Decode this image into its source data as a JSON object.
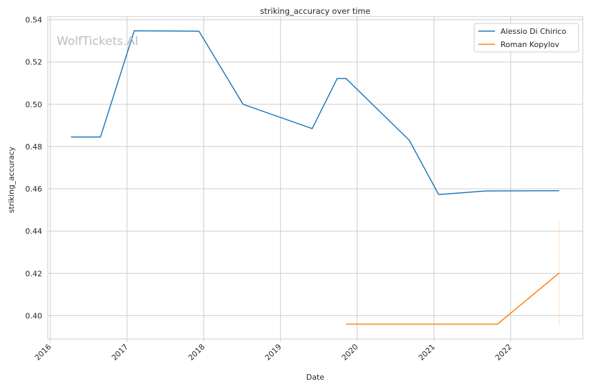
{
  "watermark": "WolfTickets.AI",
  "chart_data": {
    "type": "line",
    "title": "striking_accuracy over time",
    "xlabel": "Date",
    "ylabel": "striking_accuracy",
    "x_type": "date",
    "xlim": [
      "2015-12-20",
      "2022-12-10"
    ],
    "ylim": [
      0.389,
      0.5415
    ],
    "x_ticks": [
      "2016-01-01",
      "2017-01-01",
      "2018-01-01",
      "2019-01-01",
      "2020-01-01",
      "2021-01-01",
      "2022-01-01"
    ],
    "x_tick_labels": [
      "2016",
      "2017",
      "2018",
      "2019",
      "2020",
      "2021",
      "2022"
    ],
    "y_ticks": [
      0.4,
      0.42,
      0.44,
      0.46,
      0.48,
      0.5,
      0.52,
      0.54
    ],
    "y_tick_labels": [
      "0.40",
      "0.42",
      "0.44",
      "0.46",
      "0.48",
      "0.50",
      "0.52",
      "0.54"
    ],
    "grid": true,
    "legend_position": "top-right",
    "series": [
      {
        "name": "Alessio Di Chirico",
        "color": "#1f77b4",
        "points": [
          {
            "x": "2016-04-09",
            "y": 0.4845
          },
          {
            "x": "2016-08-27",
            "y": 0.4845
          },
          {
            "x": "2017-02-04",
            "y": 0.5348
          },
          {
            "x": "2017-12-09",
            "y": 0.5346
          },
          {
            "x": "2018-07-07",
            "y": 0.5
          },
          {
            "x": "2019-06-01",
            "y": 0.4885
          },
          {
            "x": "2019-09-28",
            "y": 0.5122
          },
          {
            "x": "2019-11-09",
            "y": 0.5122
          },
          {
            "x": "2020-09-05",
            "y": 0.483
          },
          {
            "x": "2021-01-23",
            "y": 0.4573
          },
          {
            "x": "2021-09-04",
            "y": 0.459
          },
          {
            "x": "2022-08-20",
            "y": 0.4591
          }
        ]
      },
      {
        "name": "Roman Kopylov",
        "color": "#ff7f0e",
        "points": [
          {
            "x": "2019-11-09",
            "y": 0.396
          },
          {
            "x": "2021-10-30",
            "y": 0.396
          },
          {
            "x": "2022-08-20",
            "y": 0.4202
          }
        ],
        "confidence_band": {
          "x": "2022-08-20",
          "low": 0.3955,
          "high": 0.4445
        }
      }
    ]
  }
}
